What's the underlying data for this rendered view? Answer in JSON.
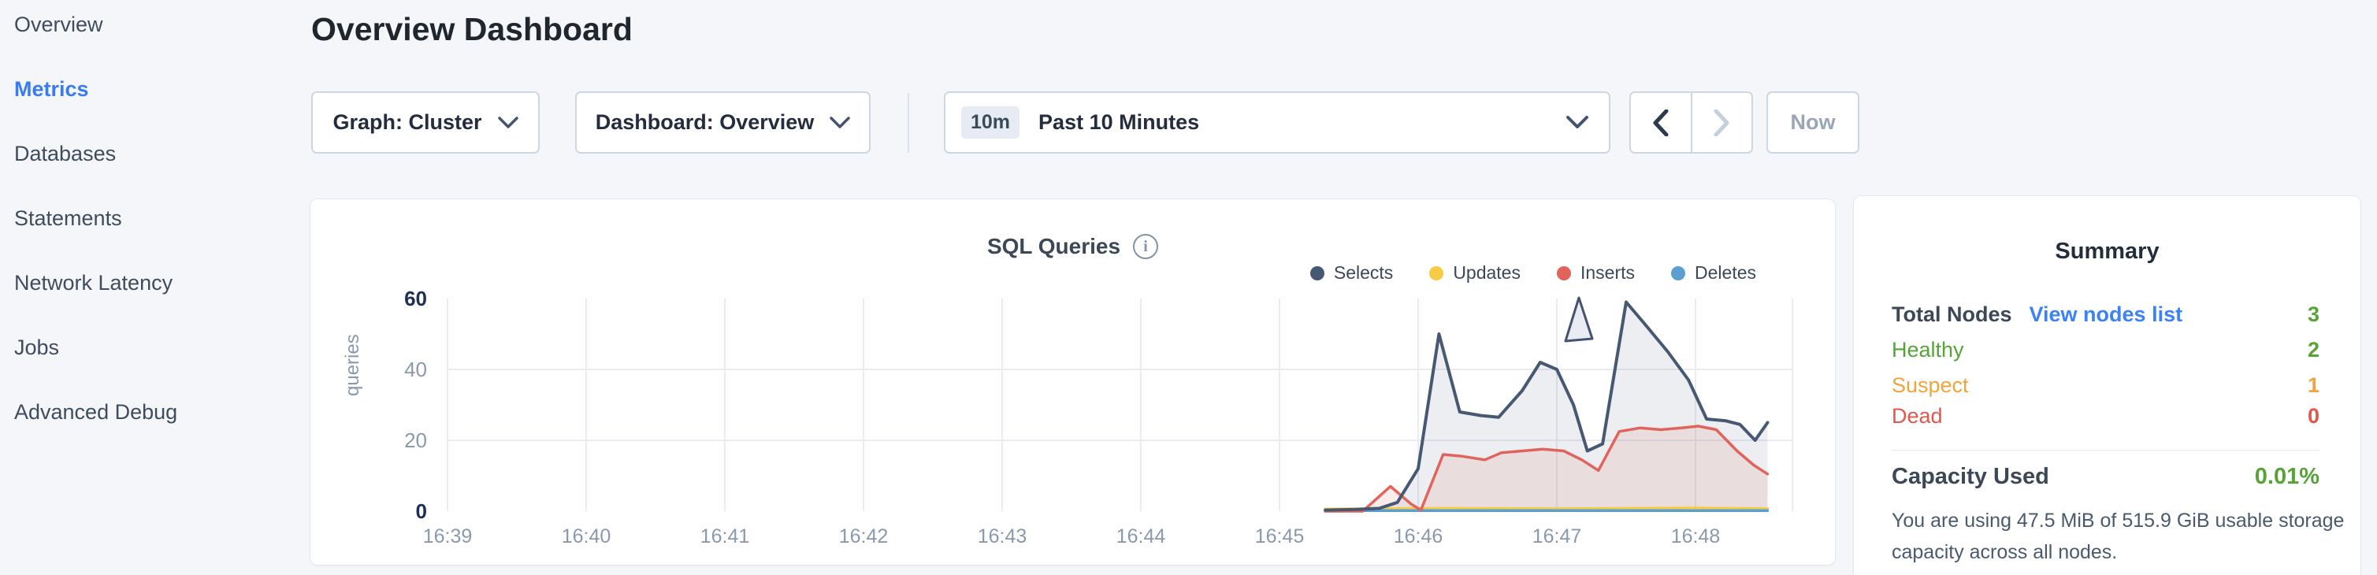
{
  "sidebar": {
    "items": [
      {
        "label": "Overview",
        "active": false
      },
      {
        "label": "Metrics",
        "active": true
      },
      {
        "label": "Databases",
        "active": false
      },
      {
        "label": "Statements",
        "active": false
      },
      {
        "label": "Network Latency",
        "active": false
      },
      {
        "label": "Jobs",
        "active": false
      },
      {
        "label": "Advanced Debug",
        "active": false
      }
    ]
  },
  "header": {
    "title": "Overview Dashboard"
  },
  "controls": {
    "graph_dropdown": {
      "label": "Graph: Cluster"
    },
    "dashboard_dropdown": {
      "label": "Dashboard: Overview"
    },
    "time_range": {
      "badge": "10m",
      "label": "Past 10 Minutes"
    },
    "now_button": "Now"
  },
  "chart_data": {
    "type": "line",
    "title": "SQL Queries",
    "ylabel": "queries",
    "y_ticks": [
      0,
      20,
      40,
      60
    ],
    "ylim": [
      0,
      60
    ],
    "x_ticks": [
      "16:39",
      "16:40",
      "16:41",
      "16:42",
      "16:43",
      "16:44",
      "16:45",
      "16:46",
      "16:47",
      "16:48"
    ],
    "x_tick_minutes": [
      39,
      40,
      41,
      42,
      43,
      44,
      45,
      46,
      47,
      48
    ],
    "x_domain_end_minute": 48.7,
    "grid": true,
    "legend_position": "top-right",
    "colors": {
      "grid": "#e9edf2",
      "axis_text": "#8a99ad",
      "axis_edge_text": "#1c2f55"
    },
    "series": [
      {
        "name": "Selects",
        "color": "#475872",
        "fill": "rgba(71,88,114,0.10)",
        "points": [
          [
            45.33,
            0.3
          ],
          [
            45.55,
            0.5
          ],
          [
            45.72,
            0.8
          ],
          [
            45.85,
            2.5
          ],
          [
            46.0,
            12
          ],
          [
            46.15,
            50
          ],
          [
            46.3,
            28
          ],
          [
            46.45,
            27
          ],
          [
            46.58,
            26.5
          ],
          [
            46.75,
            34
          ],
          [
            46.88,
            42
          ],
          [
            47.0,
            40
          ],
          [
            47.12,
            30
          ],
          [
            47.22,
            17
          ],
          [
            47.33,
            19
          ],
          [
            47.5,
            59
          ],
          [
            47.63,
            53
          ],
          [
            47.8,
            45
          ],
          [
            47.95,
            37
          ],
          [
            48.08,
            26
          ],
          [
            48.22,
            25.5
          ],
          [
            48.32,
            24.5
          ],
          [
            48.43,
            20
          ],
          [
            48.52,
            25
          ]
        ]
      },
      {
        "name": "Updates",
        "color": "#f6cb45",
        "fill": null,
        "points": [
          [
            45.33,
            0.6
          ],
          [
            46.2,
            0.8
          ],
          [
            47.0,
            0.7
          ],
          [
            48.0,
            0.9
          ],
          [
            48.52,
            0.7
          ]
        ]
      },
      {
        "name": "Inserts",
        "color": "#e0635c",
        "fill": "rgba(224,99,92,0.12)",
        "points": [
          [
            45.33,
            0
          ],
          [
            45.6,
            0
          ],
          [
            45.8,
            7
          ],
          [
            45.95,
            2
          ],
          [
            46.02,
            0.3
          ],
          [
            46.18,
            16
          ],
          [
            46.32,
            15.5
          ],
          [
            46.48,
            14.5
          ],
          [
            46.6,
            16.5
          ],
          [
            46.75,
            17
          ],
          [
            46.9,
            17.5
          ],
          [
            47.05,
            17
          ],
          [
            47.18,
            14.5
          ],
          [
            47.3,
            11.5
          ],
          [
            47.45,
            22.5
          ],
          [
            47.6,
            23.5
          ],
          [
            47.75,
            23
          ],
          [
            47.9,
            23.5
          ],
          [
            48.02,
            24
          ],
          [
            48.15,
            23
          ],
          [
            48.3,
            17
          ],
          [
            48.42,
            13
          ],
          [
            48.52,
            10.5
          ]
        ]
      },
      {
        "name": "Deletes",
        "color": "#5b9fd0",
        "fill": null,
        "points": [
          [
            45.33,
            0.15
          ],
          [
            48.52,
            0.15
          ]
        ]
      }
    ]
  },
  "summary": {
    "heading": "Summary",
    "rows": [
      {
        "label": "Total Nodes",
        "link": "View nodes list",
        "value": "3",
        "label_color": "#3c4858",
        "value_color": "#57a337"
      },
      {
        "label": "Healthy",
        "value": "2",
        "label_color": "#57a337",
        "value_color": "#57a337"
      },
      {
        "label": "Suspect",
        "value": "1",
        "label_color": "#f2a43c",
        "value_color": "#f2a43c"
      },
      {
        "label": "Dead",
        "value": "0",
        "label_color": "#e2564d",
        "value_color": "#e2564d"
      }
    ],
    "capacity": {
      "label": "Capacity Used",
      "value": "0.01%",
      "value_color": "#57a337",
      "description": "You are using 47.5 MiB of 515.9 GiB usable storage capacity across all nodes."
    }
  }
}
